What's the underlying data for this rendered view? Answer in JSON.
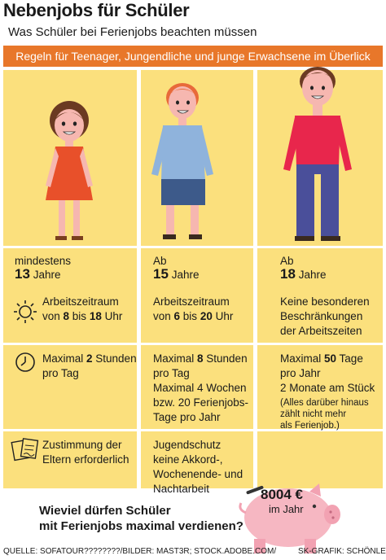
{
  "header": {
    "title": "Nebenjobs für Schüler",
    "subtitle": "Was Schüler bei Ferienjobs beachten müssen",
    "banner": "Regeln für Teenager, Jungendliche und junge Erwachsene im Überlick"
  },
  "columns": [
    {
      "age_prefix": "mindestens",
      "age_number": "13",
      "age_unit": "Jahre",
      "work_window": {
        "line1": "Arbeitszeitraum",
        "line2_pre": "von ",
        "from": "8",
        "mid": " bis ",
        "to": "18",
        "post": " Uhr"
      },
      "max_time": {
        "line1_pre": "Maximal ",
        "line1_bold": "2",
        "line1_post": " Stunden",
        "line2": "pro Tag"
      },
      "note": {
        "line1": "Zustimmung der",
        "line2": "Eltern erforderlich"
      }
    },
    {
      "age_prefix": "Ab",
      "age_number": "15",
      "age_unit": "Jahre",
      "work_window": {
        "line1": "Arbeitszeitraum",
        "line2_pre": "von ",
        "from": "6",
        "mid": " bis ",
        "to": "20",
        "post": " Uhr"
      },
      "max_time": {
        "line1_pre": "Maximal ",
        "line1_bold": "8",
        "line1_post": " Stunden",
        "line2": "pro Tag",
        "line3": "Maximal 4 Wochen",
        "line4": "bzw. 20 Ferienjobs-",
        "line5": "Tage pro Jahr"
      },
      "note": {
        "line1": "Jugendschutz",
        "line2": "keine Akkord-,",
        "line3": "Wochenende- und",
        "line4": "Nachtarbeit"
      }
    },
    {
      "age_prefix": "Ab",
      "age_number": "18",
      "age_unit": "Jahre",
      "work_window": {
        "line1": "Keine besonderen",
        "line2": "Beschränkungen",
        "line3": "der Arbeitszeiten"
      },
      "max_time": {
        "line1_pre": "Maximal ",
        "line1_bold": "50",
        "line1_post": " Tage",
        "line2": "pro Jahr",
        "line3": "2 Monate am Stück",
        "small1": "(Alles darüber hinaus",
        "small2": "zählt nicht mehr",
        "small3": "als Ferienjob.)"
      }
    }
  ],
  "footer": {
    "question_line1": "Wieviel dürfen Schüler",
    "question_line2": "mit Ferienjobs maximal verdienen?",
    "amount": "8004 €",
    "per_year": "im Jahr",
    "credit_left": "QUELLE: SOFATOUR????????/BILDER: MAST3R; STOCK.ADOBE.COM/",
    "credit_right": "SK-GRAFIK: SCHÖNLEIN"
  },
  "colors": {
    "background_panel": "#fbe07d",
    "banner": "#e8772a",
    "girl_dress": "#e8502a",
    "boy_shirt": "#8fb3dc",
    "boy_shorts": "#3d5a8a",
    "man_shirt": "#e8264c",
    "man_pants": "#4a4f9a",
    "skin": "#f6b7b0",
    "pig": "#f6b7c2"
  },
  "icons": [
    "girl-figure",
    "boy-figure",
    "man-figure",
    "sun-icon",
    "clock-icon",
    "document-icon",
    "piggy-bank-icon"
  ]
}
